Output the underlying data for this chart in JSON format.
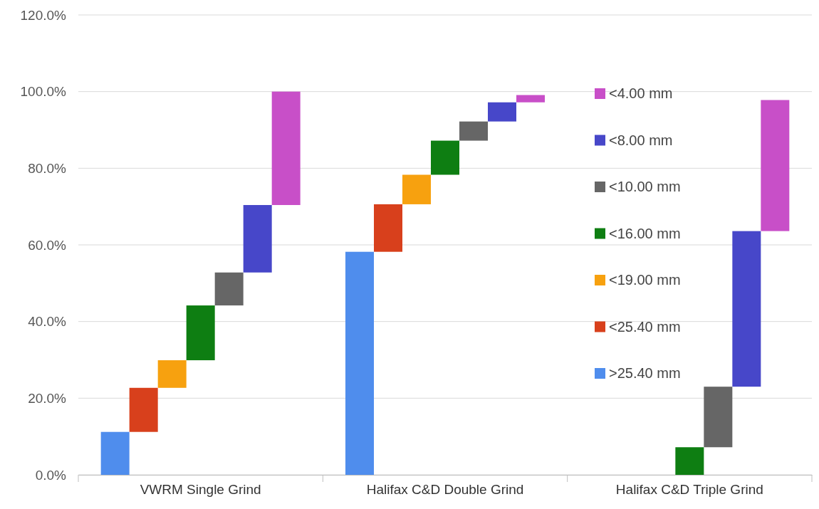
{
  "chart_data": {
    "type": "bar",
    "categories": [
      "VWRM Single Grind",
      "Halifax C&D Double Grind",
      "Halifax C&D Triple Grind"
    ],
    "series": [
      {
        "name": ">25.40 mm",
        "color": "#4f8ded",
        "base": [
          0,
          0,
          null
        ],
        "values": [
          11.2,
          58.2,
          null
        ]
      },
      {
        "name": "<25.40 mm",
        "color": "#d8401c",
        "base": [
          11.2,
          58.2,
          null
        ],
        "values": [
          11.5,
          12.4,
          null
        ]
      },
      {
        "name": "<19.00 mm",
        "color": "#f7a10f",
        "base": [
          22.7,
          70.6,
          null
        ],
        "values": [
          7.2,
          7.7,
          null
        ]
      },
      {
        "name": "<16.00 mm",
        "color": "#0e7e12",
        "base": [
          29.9,
          78.3,
          0
        ],
        "values": [
          14.3,
          8.9,
          7.2
        ]
      },
      {
        "name": "<10.00 mm",
        "color": "#666666",
        "base": [
          44.2,
          87.2,
          7.2
        ],
        "values": [
          8.6,
          5,
          15.8
        ]
      },
      {
        "name": "<8.00 mm",
        "color": "#4747c9",
        "base": [
          52.8,
          92.2,
          23
        ],
        "values": [
          17.6,
          5,
          40.6
        ]
      },
      {
        "name": "<4.00 mm",
        "color": "#c84fc8",
        "base": [
          70.4,
          97.2,
          63.6
        ],
        "values": [
          29.6,
          1.9,
          34.2
        ]
      }
    ],
    "ylim": [
      0,
      120
    ],
    "yticks": [
      {
        "value": 0,
        "label": "0.0%"
      },
      {
        "value": 20,
        "label": "20.0%"
      },
      {
        "value": 40,
        "label": "40.0%"
      },
      {
        "value": 60,
        "label": "60.0%"
      },
      {
        "value": 80,
        "label": "80.0%"
      },
      {
        "value": 100,
        "label": "100.0%"
      },
      {
        "value": 120,
        "label": "120.0%"
      }
    ],
    "grid": "y",
    "legend": "right"
  }
}
